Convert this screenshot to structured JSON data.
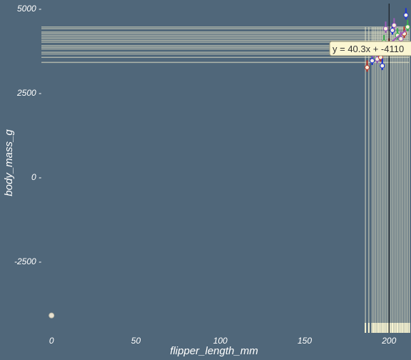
{
  "chart_data": {
    "type": "scatter",
    "title": "",
    "xlabel": "flipper_length_mm",
    "ylabel": "body_mass_g",
    "xlim": [
      -6,
      213
    ],
    "ylim": [
      -4700,
      5250
    ],
    "x_ticks": [
      0,
      50,
      100,
      150,
      200
    ],
    "y_ticks": [
      -2500,
      0,
      2500,
      5000
    ],
    "x_tick_labels": [
      "0",
      "50",
      "100",
      "150",
      "200"
    ],
    "y_tick_labels": [
      "-2500 -",
      "0 -",
      "2500 -",
      "5000 -"
    ],
    "grid": false,
    "outlier_point": {
      "x": 0,
      "y": -4100
    },
    "points": [
      {
        "x": 187,
        "y": 3250
      },
      {
        "x": 190,
        "y": 3450
      },
      {
        "x": 191,
        "y": 3650
      },
      {
        "x": 193,
        "y": 3500
      },
      {
        "x": 195,
        "y": 3550
      },
      {
        "x": 196,
        "y": 3300
      },
      {
        "x": 197,
        "y": 4000
      },
      {
        "x": 198,
        "y": 4400
      },
      {
        "x": 200,
        "y": 3900
      },
      {
        "x": 202,
        "y": 4350
      },
      {
        "x": 205,
        "y": 4200
      },
      {
        "x": 207,
        "y": 4100
      },
      {
        "x": 209,
        "y": 4250
      },
      {
        "x": 210,
        "y": 4800
      },
      {
        "x": 211,
        "y": 4450
      },
      {
        "x": 203,
        "y": 4500
      },
      {
        "x": 194,
        "y": 3700
      }
    ],
    "rug_x": [
      186,
      188,
      190,
      191,
      192,
      193,
      194,
      195,
      196,
      197,
      198,
      199,
      200,
      201,
      202,
      203,
      204,
      205,
      206,
      207,
      208,
      209,
      210,
      211,
      212
    ],
    "rug_y": [
      3400,
      3550,
      3650,
      3700,
      3800,
      3850,
      3900,
      4000,
      4050,
      4100,
      4150,
      4200,
      4250,
      4300,
      4400,
      4450
    ],
    "span_x": [
      187,
      212
    ],
    "span_y": [
      3400,
      4450
    ],
    "vline_x": 200,
    "trend": {
      "slope": 40.3,
      "intercept": -4110,
      "x_range": [
        190,
        210
      ]
    },
    "equation_label": "y = 40.3x + -4110",
    "colors": {
      "background": "#50677a",
      "rug": "#fbf6d2",
      "point_fill": "#f7f0de",
      "accent_red": "#c0392b",
      "accent_blue": "#1f33d6",
      "accent_green": "#3cb44b",
      "accent_purple": "#9b59b6",
      "label_bg": "#fbf6d2"
    }
  }
}
